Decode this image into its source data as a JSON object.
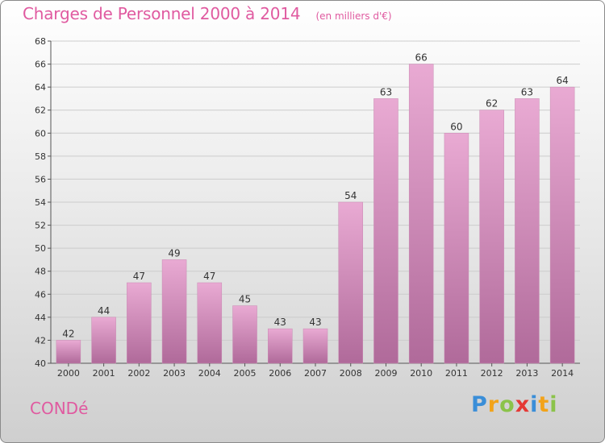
{
  "header": {
    "title": "Charges de Personnel 2000 à 2014",
    "subtitle": "(en milliers d'€)"
  },
  "commune": "CONDé",
  "logo": {
    "text": "Proxiti",
    "letters": [
      "P",
      "r",
      "o",
      "x",
      "i",
      "t",
      "i"
    ]
  },
  "colors": {
    "title": "#e05aa0",
    "bar_top": "#e9aad3",
    "bar_bottom": "#b06a9a",
    "grid": "#cccccc"
  },
  "chart_data": {
    "type": "bar",
    "title": "Charges de Personnel 2000 à 2014",
    "subtitle": "(en milliers d'€)",
    "categories": [
      "2000",
      "2001",
      "2002",
      "2003",
      "2004",
      "2005",
      "2006",
      "2007",
      "2008",
      "2009",
      "2010",
      "2011",
      "2012",
      "2013",
      "2014"
    ],
    "values": [
      42,
      44,
      47,
      49,
      47,
      45,
      43,
      43,
      54,
      63,
      66,
      60,
      62,
      63,
      64
    ],
    "ylim": [
      40,
      68
    ],
    "yticks": [
      40,
      42,
      44,
      46,
      48,
      50,
      52,
      54,
      56,
      58,
      60,
      62,
      64,
      66,
      68
    ],
    "grid": true,
    "data_labels": true,
    "xlabel": "",
    "ylabel": ""
  }
}
